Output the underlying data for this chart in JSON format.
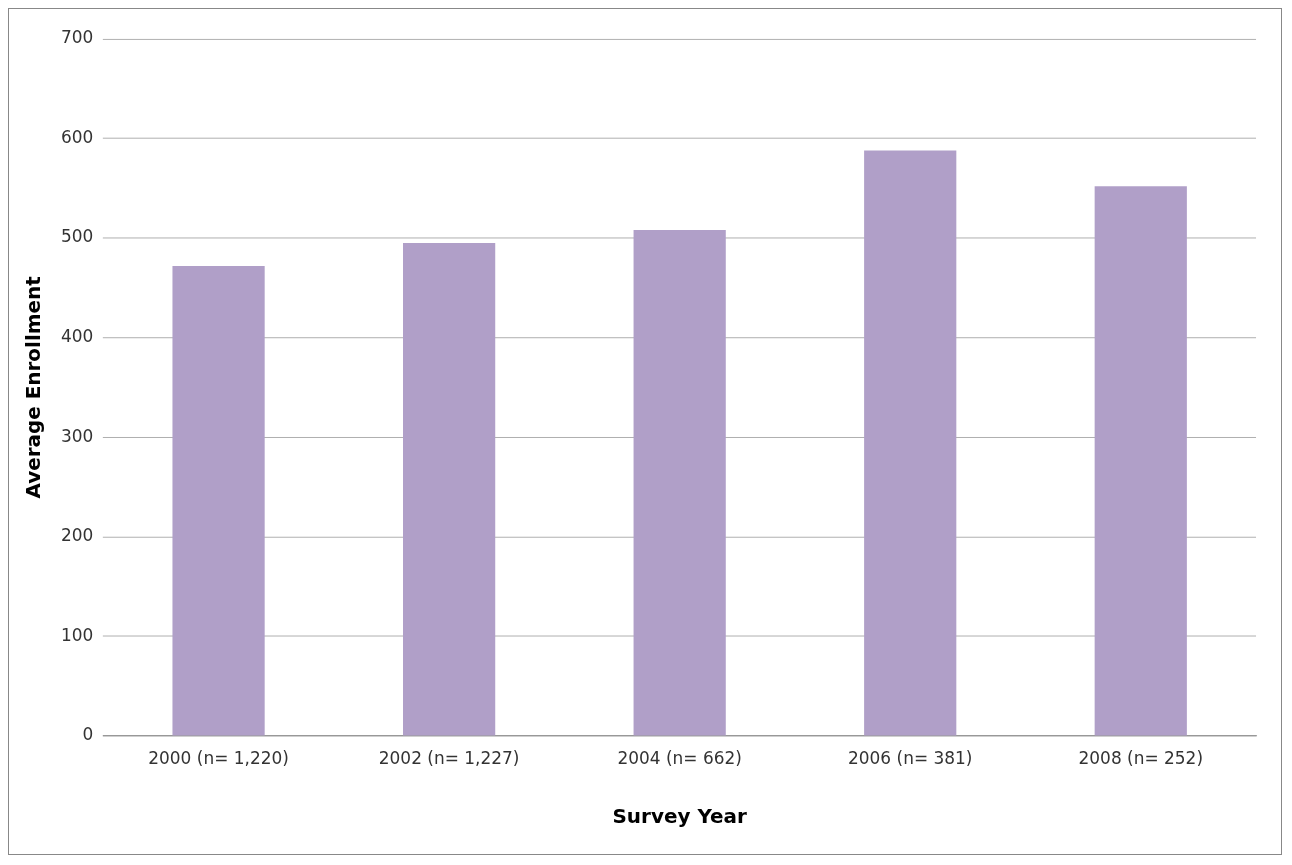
{
  "chart_data": {
    "type": "bar",
    "xlabel": "Survey Year",
    "ylabel": "Average Enrollment",
    "categories": [
      "2000 (n= 1,220)",
      "2002 (n= 1,227)",
      "2004 (n= 662)",
      "2006 (n= 381)",
      "2008 (n= 252)"
    ],
    "values": [
      472,
      495,
      508,
      588,
      552
    ],
    "color": "#b09fc8",
    "ylim": [
      0,
      700
    ],
    "yticks": [
      0,
      100,
      200,
      300,
      400,
      500,
      600,
      700
    ],
    "grid": "y",
    "legend": false
  }
}
